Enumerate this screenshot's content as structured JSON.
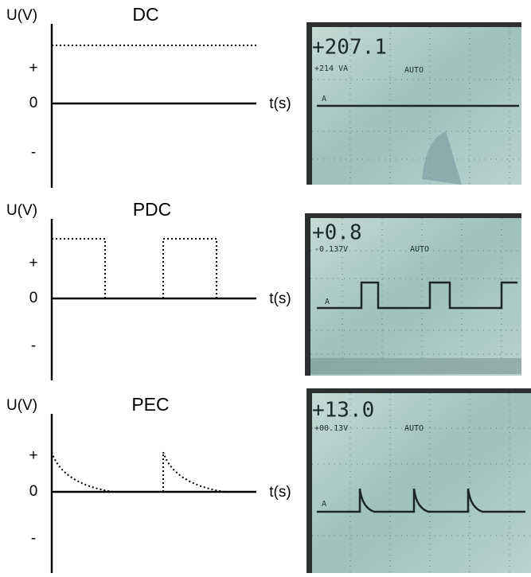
{
  "panels": [
    {
      "y_label": "U(V)",
      "title": "DC",
      "plus": "+",
      "zero": "0",
      "minus": "-",
      "x_label": "t(s)",
      "screen": {
        "readout": "+207.1",
        "sub": "+214 VA",
        "mode": "AUTO",
        "channel": "A"
      }
    },
    {
      "y_label": "U(V)",
      "title": "PDC",
      "plus": "+",
      "zero": "0",
      "minus": "-",
      "x_label": "t(s)",
      "screen": {
        "readout": "+0.8",
        "sub": "-0.137V",
        "mode": "AUTO",
        "channel": "A"
      }
    },
    {
      "y_label": "U(V)",
      "title": "PEC",
      "plus": "+",
      "zero": "0",
      "minus": "-",
      "x_label": "t(s)",
      "screen": {
        "readout": "+13.0",
        "sub": "+00.13V",
        "mode": "AUTO",
        "channel": "A"
      }
    }
  ]
}
